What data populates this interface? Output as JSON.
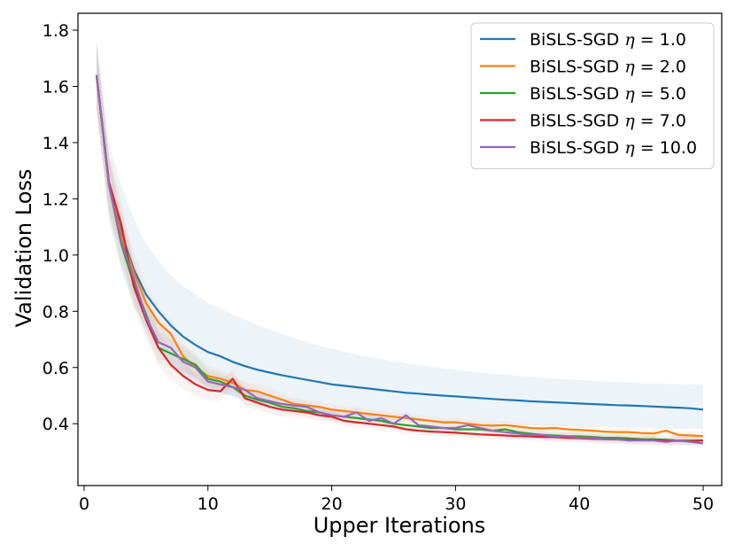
{
  "chart_data": {
    "type": "line",
    "title": "",
    "xlabel": "Upper Iterations",
    "ylabel": "Validation Loss",
    "xlim": [
      -0.5,
      51.5
    ],
    "ylim": [
      0.18,
      1.86
    ],
    "xticks": [
      "0",
      "10",
      "20",
      "30",
      "40",
      "50"
    ],
    "yticks": [
      "0.4",
      "0.6",
      "0.8",
      "1.0",
      "1.2",
      "1.4",
      "1.6",
      "1.8"
    ],
    "legend_position": "top-right",
    "x": [
      1,
      2,
      3,
      4,
      5,
      6,
      7,
      8,
      9,
      10,
      11,
      12,
      13,
      14,
      15,
      16,
      17,
      18,
      19,
      20,
      21,
      22,
      23,
      24,
      25,
      26,
      27,
      28,
      29,
      30,
      31,
      32,
      33,
      34,
      35,
      36,
      37,
      38,
      39,
      40,
      41,
      42,
      43,
      44,
      45,
      46,
      47,
      48,
      49,
      50
    ],
    "series": [
      {
        "name": "BiSLS-SGD",
        "eta": "1.0",
        "color": "#1f77b4",
        "values": [
          1.64,
          1.25,
          1.08,
          0.95,
          0.86,
          0.8,
          0.75,
          0.71,
          0.68,
          0.655,
          0.64,
          0.62,
          0.605,
          0.592,
          0.582,
          0.572,
          0.564,
          0.556,
          0.548,
          0.54,
          0.535,
          0.53,
          0.525,
          0.52,
          0.515,
          0.51,
          0.507,
          0.503,
          0.5,
          0.497,
          0.494,
          0.491,
          0.488,
          0.485,
          0.483,
          0.48,
          0.478,
          0.476,
          0.474,
          0.472,
          0.47,
          0.468,
          0.466,
          0.465,
          0.463,
          0.461,
          0.459,
          0.457,
          0.455,
          0.45
        ],
        "upper": [
          1.76,
          1.4,
          1.25,
          1.13,
          1.04,
          0.98,
          0.93,
          0.89,
          0.86,
          0.83,
          0.81,
          0.79,
          0.77,
          0.75,
          0.735,
          0.72,
          0.705,
          0.69,
          0.678,
          0.667,
          0.656,
          0.647,
          0.638,
          0.63,
          0.622,
          0.615,
          0.609,
          0.603,
          0.597,
          0.592,
          0.587,
          0.583,
          0.578,
          0.574,
          0.571,
          0.567,
          0.564,
          0.561,
          0.558,
          0.556,
          0.553,
          0.551,
          0.549,
          0.547,
          0.545,
          0.544,
          0.542,
          0.541,
          0.54,
          0.54
        ],
        "lower": [
          1.52,
          1.12,
          0.95,
          0.82,
          0.74,
          0.67,
          0.62,
          0.58,
          0.55,
          0.53,
          0.51,
          0.495,
          0.485,
          0.475,
          0.465,
          0.456,
          0.449,
          0.443,
          0.437,
          0.432,
          0.428,
          0.424,
          0.42,
          0.417,
          0.414,
          0.411,
          0.409,
          0.407,
          0.405,
          0.403,
          0.401,
          0.399,
          0.397,
          0.396,
          0.395,
          0.394,
          0.393,
          0.392,
          0.391,
          0.39,
          0.389,
          0.388,
          0.387,
          0.386,
          0.385,
          0.384,
          0.383,
          0.382,
          0.381,
          0.38
        ]
      },
      {
        "name": "BiSLS-SGD",
        "eta": "2.0",
        "color": "#ff7f0e",
        "values": [
          1.64,
          1.25,
          1.07,
          0.94,
          0.83,
          0.76,
          0.72,
          0.64,
          0.6,
          0.57,
          0.56,
          0.545,
          0.52,
          0.515,
          0.5,
          0.485,
          0.47,
          0.465,
          0.46,
          0.45,
          0.445,
          0.44,
          0.435,
          0.43,
          0.425,
          0.42,
          0.415,
          0.41,
          0.405,
          0.405,
          0.4,
          0.395,
          0.393,
          0.395,
          0.39,
          0.385,
          0.383,
          0.385,
          0.38,
          0.378,
          0.375,
          0.372,
          0.37,
          0.37,
          0.367,
          0.365,
          0.375,
          0.36,
          0.358,
          0.356
        ]
      },
      {
        "name": "BiSLS-SGD",
        "eta": "5.0",
        "color": "#2ca02c",
        "values": [
          1.64,
          1.25,
          1.04,
          0.9,
          0.79,
          0.67,
          0.65,
          0.63,
          0.61,
          0.56,
          0.55,
          0.53,
          0.5,
          0.485,
          0.475,
          0.46,
          0.455,
          0.445,
          0.44,
          0.43,
          0.425,
          0.42,
          0.415,
          0.41,
          0.4,
          0.395,
          0.39,
          0.385,
          0.385,
          0.38,
          0.38,
          0.38,
          0.375,
          0.38,
          0.37,
          0.365,
          0.36,
          0.358,
          0.356,
          0.355,
          0.353,
          0.35,
          0.35,
          0.348,
          0.345,
          0.345,
          0.343,
          0.34,
          0.34,
          0.34
        ]
      },
      {
        "name": "BiSLS-SGD",
        "eta": "7.0",
        "color": "#d62728",
        "values": [
          1.64,
          1.26,
          1.11,
          0.89,
          0.77,
          0.67,
          0.61,
          0.57,
          0.54,
          0.52,
          0.515,
          0.56,
          0.49,
          0.475,
          0.46,
          0.45,
          0.445,
          0.44,
          0.43,
          0.425,
          0.41,
          0.405,
          0.4,
          0.395,
          0.39,
          0.38,
          0.375,
          0.372,
          0.37,
          0.368,
          0.365,
          0.362,
          0.36,
          0.358,
          0.356,
          0.355,
          0.353,
          0.352,
          0.35,
          0.348,
          0.346,
          0.345,
          0.344,
          0.343,
          0.342,
          0.341,
          0.34,
          0.339,
          0.338,
          0.34
        ]
      },
      {
        "name": "BiSLS-SGD",
        "eta": "10.0",
        "color": "#9467bd",
        "values": [
          1.64,
          1.25,
          1.05,
          0.92,
          0.78,
          0.69,
          0.67,
          0.62,
          0.6,
          0.55,
          0.54,
          0.53,
          0.52,
          0.49,
          0.48,
          0.47,
          0.465,
          0.46,
          0.44,
          0.43,
          0.425,
          0.44,
          0.41,
          0.42,
          0.4,
          0.43,
          0.395,
          0.39,
          0.385,
          0.385,
          0.395,
          0.385,
          0.375,
          0.37,
          0.365,
          0.36,
          0.36,
          0.355,
          0.355,
          0.35,
          0.35,
          0.345,
          0.345,
          0.34,
          0.34,
          0.34,
          0.335,
          0.34,
          0.335,
          0.33
        ]
      }
    ]
  }
}
